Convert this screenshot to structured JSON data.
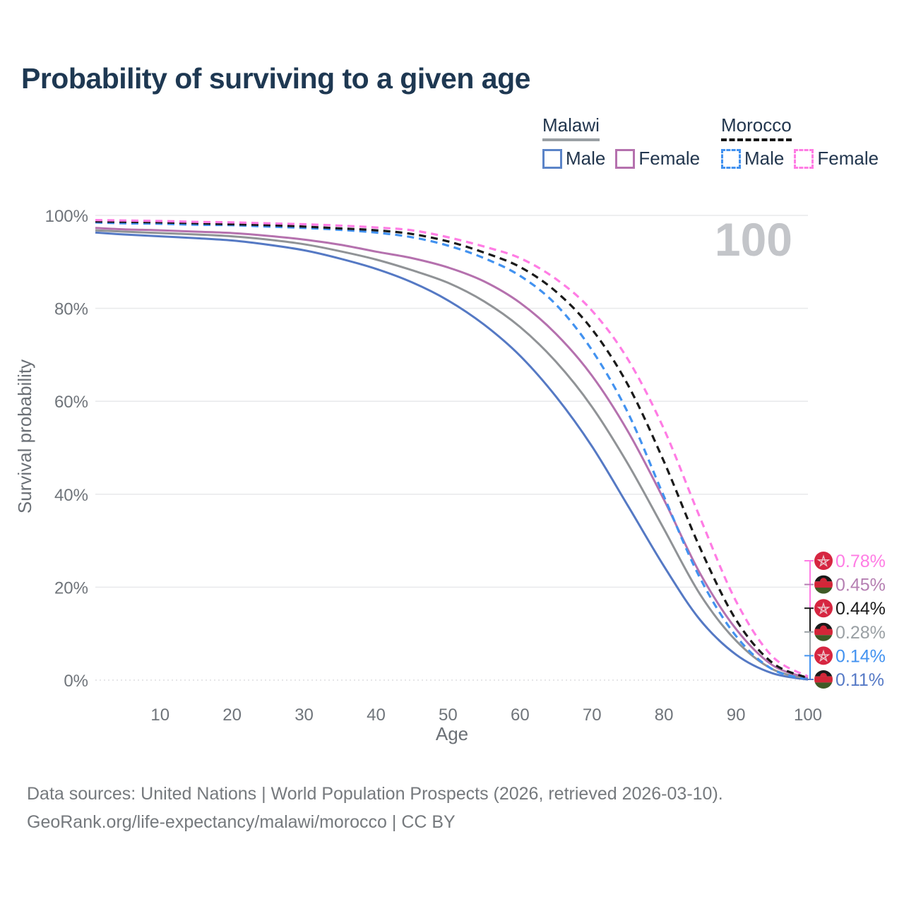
{
  "title": "Probability of surviving to a given age",
  "watermark": "100",
  "legend": {
    "groups": [
      {
        "name": "Malawi",
        "underline_style": "solid",
        "items": [
          {
            "label": "Male",
            "color": "#5b84c8",
            "dashed": false
          },
          {
            "label": "Female",
            "color": "#b571ae",
            "dashed": false
          }
        ]
      },
      {
        "name": "Morocco",
        "underline_style": "dashed",
        "items": [
          {
            "label": "Male",
            "color": "#4292f0",
            "dashed": true
          },
          {
            "label": "Female",
            "color": "#ff7ce4",
            "dashed": true
          }
        ]
      }
    ]
  },
  "chart_data": {
    "type": "line",
    "title": "Probability of surviving to a given age",
    "xlabel": "Age",
    "ylabel": "Survival probability",
    "xlim": [
      1,
      100
    ],
    "ylim": [
      0,
      100
    ],
    "grid": true,
    "legend_position": "top-right",
    "x_ticks": [
      10,
      20,
      30,
      40,
      50,
      60,
      70,
      80,
      90,
      100
    ],
    "y_ticks": [
      {
        "value": 0,
        "label": "0%"
      },
      {
        "value": 20,
        "label": "20%"
      },
      {
        "value": 40,
        "label": "40%"
      },
      {
        "value": 60,
        "label": "60%"
      },
      {
        "value": 80,
        "label": "80%"
      },
      {
        "value": 100,
        "label": "100%"
      }
    ],
    "ages": [
      1,
      5,
      10,
      15,
      20,
      25,
      30,
      35,
      40,
      45,
      50,
      55,
      60,
      65,
      70,
      75,
      80,
      85,
      90,
      95,
      100
    ],
    "series": [
      {
        "name": "Malawi Male",
        "country": "Malawi",
        "sex": "Male",
        "color": "#5579c4",
        "dashed": false,
        "values": [
          96.3,
          95.9,
          95.5,
          95.1,
          94.6,
          93.7,
          92.5,
          90.7,
          88.5,
          85.6,
          81.7,
          76.5,
          69.8,
          61.0,
          50.3,
          37.5,
          24.5,
          13.0,
          5.5,
          1.5,
          0.11
        ],
        "end_label": "0.11%"
      },
      {
        "name": "Malawi",
        "country": "Malawi",
        "sex": "Both",
        "color": "#909396",
        "dashed": false,
        "values": [
          96.8,
          96.5,
          96.2,
          95.9,
          95.5,
          94.8,
          93.8,
          92.3,
          90.5,
          88.2,
          85.5,
          81.5,
          76.0,
          68.5,
          58.8,
          46.5,
          32.5,
          18.5,
          8.5,
          2.4,
          0.28
        ],
        "end_label": "0.28%"
      },
      {
        "name": "Malawi Female",
        "country": "Malawi",
        "sex": "Female",
        "color": "#b571ae",
        "dashed": false,
        "values": [
          97.3,
          97.0,
          96.8,
          96.5,
          96.2,
          95.6,
          94.8,
          93.7,
          92.2,
          90.8,
          88.8,
          85.8,
          81.2,
          74.5,
          65.5,
          53.5,
          38.8,
          23.0,
          11.0,
          3.3,
          0.45
        ],
        "end_label": "0.45%"
      },
      {
        "name": "Morocco Male",
        "country": "Morocco",
        "sex": "Male",
        "color": "#4292f0",
        "dashed": true,
        "values": [
          98.5,
          98.3,
          98.2,
          98.0,
          97.9,
          97.6,
          97.3,
          96.9,
          96.3,
          95.3,
          93.5,
          90.8,
          87.0,
          80.8,
          71.0,
          57.5,
          39.5,
          22.0,
          9.5,
          2.4,
          0.14
        ],
        "end_label": "0.14%"
      },
      {
        "name": "Morocco",
        "country": "Morocco",
        "sex": "Both",
        "color": "#1a1a1a",
        "dashed": true,
        "values": [
          98.7,
          98.6,
          98.5,
          98.3,
          98.1,
          97.9,
          97.6,
          97.2,
          96.8,
          96.0,
          94.4,
          92.0,
          88.9,
          83.6,
          75.5,
          63.5,
          47.0,
          28.5,
          13.0,
          3.8,
          0.44
        ],
        "end_label": "0.44%"
      },
      {
        "name": "Morocco Female",
        "country": "Morocco",
        "sex": "Female",
        "color": "#ff7ce4",
        "dashed": true,
        "values": [
          99.0,
          98.9,
          98.8,
          98.6,
          98.5,
          98.3,
          98.1,
          97.8,
          97.4,
          96.8,
          95.3,
          93.3,
          90.8,
          86.3,
          79.5,
          69.0,
          54.0,
          35.0,
          17.0,
          5.2,
          0.78
        ],
        "end_label": "0.78%"
      }
    ]
  },
  "end_labels": [
    {
      "flag": "morocco",
      "value": "0.78%",
      "color": "#ff7ce4"
    },
    {
      "flag": "malawi",
      "value": "0.45%",
      "color": "#b57fb2"
    },
    {
      "flag": "morocco",
      "value": "0.44%",
      "color": "#1a1a1a"
    },
    {
      "flag": "malawi",
      "value": "0.28%",
      "color": "#9aa0a4"
    },
    {
      "flag": "morocco",
      "value": "0.14%",
      "color": "#4292f0"
    },
    {
      "flag": "malawi",
      "value": "0.11%",
      "color": "#5579c6"
    }
  ],
  "footer": {
    "line1": "Data sources: United Nations | World Population Prospects (2026, retrieved 2026-03-10).",
    "line2": "GeoRank.org/life-expectancy/malawi/morocco | CC BY"
  }
}
